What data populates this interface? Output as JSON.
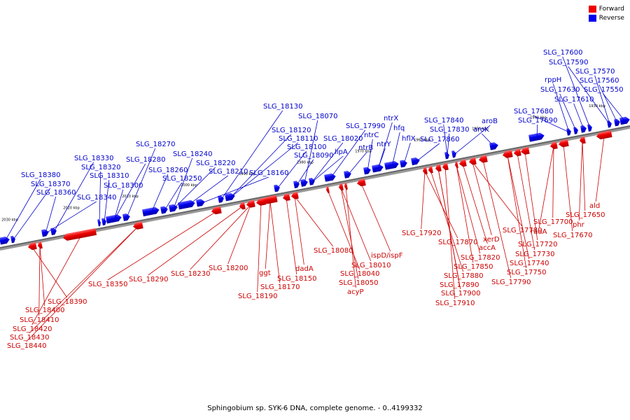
{
  "legend": {
    "forward": {
      "label": "Forward",
      "color": "#ee0000"
    },
    "reverse": {
      "label": "Reverse",
      "color": "#0000ee"
    }
  },
  "caption": "Sphingobium sp. SYK-6 DNA, complete genome. - 0..4199332",
  "ticks": [
    "2030 kbp",
    "2020 kbp",
    "2010 kbp",
    "2000 kbp",
    "1990 kbp",
    "1980 kbp",
    "1970 kbp",
    "1960 kbp",
    "1950 kbp",
    "1940 kbp",
    "1930 kbp"
  ],
  "reverse_labels": [
    "SLG_18380",
    "SLG_18370",
    "SLG_18360",
    "SLG_18340",
    "SLG_18330",
    "SLG_18320",
    "SLG_18310",
    "SLG_18300",
    "SLG_18280",
    "SLG_18270",
    "SLG_18260",
    "SLG_18250",
    "SLG_18240",
    "SLG_18220",
    "SLG_18210",
    "SLG_18160",
    "SLG_18130",
    "SLG_18120",
    "SLG_18110",
    "SLG_18100",
    "SLG_18090",
    "SLG_18070",
    "SLG_18020",
    "lipA",
    "SLG_17990",
    "ntrB",
    "ntrC",
    "ntrY",
    "ntrX",
    "hfq",
    "hflX",
    "SLG_17860",
    "SLG_17840",
    "SLG_17830",
    "aroB",
    "aroK",
    "SLG_17690",
    "SLG_17680",
    "rppH",
    "SLG_17630",
    "SLG_17610",
    "SLG_17600",
    "SLG_17590",
    "SLG_17570",
    "SLG_17560",
    "SLG_17550"
  ],
  "forward_labels": [
    "SLG_18390",
    "SLG_18400",
    "SLG_18410",
    "SLG_18420",
    "SLG_18430",
    "SLG_18440",
    "SLG_18350",
    "SLG_18290",
    "SLG_18230",
    "SLG_18200",
    "SLG_18190",
    "SLG_18170",
    "ggt",
    "SLG_18150",
    "dadA",
    "SLG_18080",
    "SLG_18040",
    "SLG_18050",
    "SLG_18010",
    "acyP",
    "ispD/ispF",
    "SLG_17920",
    "SLG_17870",
    "SLG_17880",
    "SLG_17890",
    "SLG_17900",
    "SLG_17910",
    "SLG_17850",
    "SLG_17820",
    "accA",
    "xerD",
    "SLG_17780",
    "SLG_17790",
    "SLG_17750",
    "SLG_17740",
    "SLG_17730",
    "SLG_17720",
    "radA",
    "SLG_17700",
    "SLG_17670",
    "phr",
    "SLG_17650",
    "ald"
  ]
}
